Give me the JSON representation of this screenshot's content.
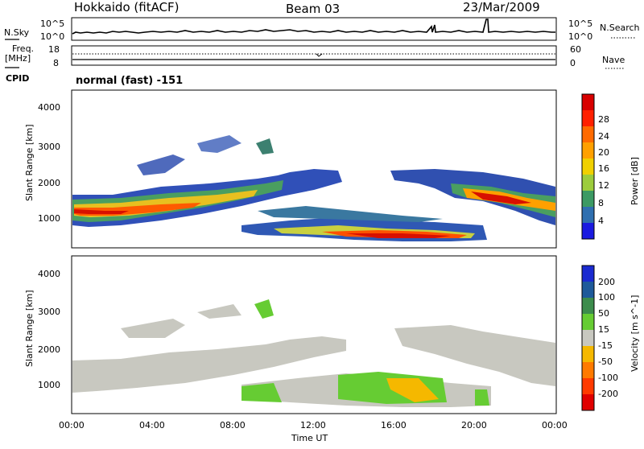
{
  "header": {
    "station": "Hokkaido (fitACF)",
    "beam": "Beam 03",
    "date": "23/Mar/2009"
  },
  "aux_panels": {
    "nsky_label": "N.Sky",
    "nsearch_label": "N.Search",
    "freq_label_line1": "Freq.",
    "freq_label_line2": "[MHz]",
    "nave_label": "Nave",
    "cpid_label": "CPID",
    "cpid_value": "normal (fast) -151",
    "noise_ticks": [
      "10^5",
      "10^0"
    ],
    "freq_ticks": [
      "18",
      "8"
    ],
    "nave_ticks": [
      "60",
      "0"
    ]
  },
  "chart_data": [
    {
      "type": "heatmap",
      "title": "",
      "ylabel": "Slant Range [km]",
      "xlabel": "",
      "ylim": [
        200,
        4600
      ],
      "yticks": [
        "4000",
        "3000",
        "2000",
        "1000"
      ],
      "colorbar": {
        "label": "Power [dB]",
        "ticks": [
          "28",
          "24",
          "20",
          "16",
          "12",
          "8",
          "4"
        ],
        "colors": [
          "#d80000",
          "#ff2000",
          "#ff6a00",
          "#ffa000",
          "#f0d000",
          "#9ccc3c",
          "#3c9a64",
          "#2f6fb0",
          "#1a1ae0"
        ]
      }
    },
    {
      "type": "heatmap",
      "title": "",
      "ylabel": "Slant Range [km]",
      "xlabel": "Time UT",
      "ylim": [
        200,
        4600
      ],
      "yticks": [
        "4000",
        "3000",
        "2000",
        "1000"
      ],
      "xticks": [
        "00:00",
        "04:00",
        "08:00",
        "12:00",
        "16:00",
        "20:00",
        "00:00"
      ],
      "colorbar": {
        "label": "Velocity [m s^-1]",
        "ticks": [
          "200",
          "100",
          "50",
          "15",
          "-15",
          "-50",
          "-100",
          "-200"
        ],
        "colors": [
          "#1a2ad0",
          "#1e5a9a",
          "#3c8c4c",
          "#66cc33",
          "#c8c8c0",
          "#f5b800",
          "#ff7a00",
          "#ff3a00",
          "#e00000"
        ]
      }
    }
  ]
}
